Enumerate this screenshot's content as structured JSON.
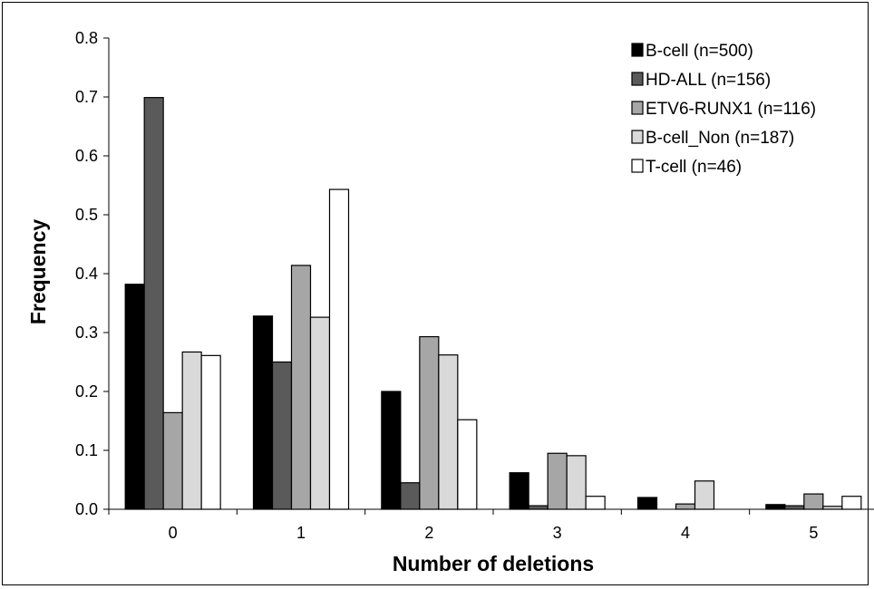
{
  "chart_data": {
    "type": "bar",
    "title": "",
    "xlabel": "Number of deletions",
    "ylabel": "Frequency",
    "categories": [
      "0",
      "1",
      "2",
      "3",
      "4",
      "5"
    ],
    "ylim": [
      0,
      0.8
    ],
    "yticks": [
      "0.0",
      "0.1",
      "0.2",
      "0.3",
      "0.4",
      "0.5",
      "0.6",
      "0.7",
      "0.8"
    ],
    "grid": false,
    "legend_position": "top-right",
    "series": [
      {
        "name": "B-cell (n=500)",
        "color": "#000000",
        "values": [
          0.382,
          0.328,
          0.2,
          0.062,
          0.02,
          0.008
        ]
      },
      {
        "name": "HD-ALL (n=156)",
        "color": "#5a5a5a",
        "values": [
          0.699,
          0.25,
          0.045,
          0.006,
          0.0,
          0.006
        ]
      },
      {
        "name": "ETV6-RUNX1 (n=116)",
        "color": "#a6a6a6",
        "values": [
          0.164,
          0.414,
          0.293,
          0.095,
          0.009,
          0.026
        ]
      },
      {
        "name": "B-cell_Non (n=187)",
        "color": "#d9d9d9",
        "values": [
          0.267,
          0.326,
          0.262,
          0.091,
          0.048,
          0.005
        ]
      },
      {
        "name": "T-cell (n=46)",
        "color": "#ffffff",
        "values": [
          0.261,
          0.543,
          0.152,
          0.022,
          0.0,
          0.022
        ]
      }
    ]
  }
}
